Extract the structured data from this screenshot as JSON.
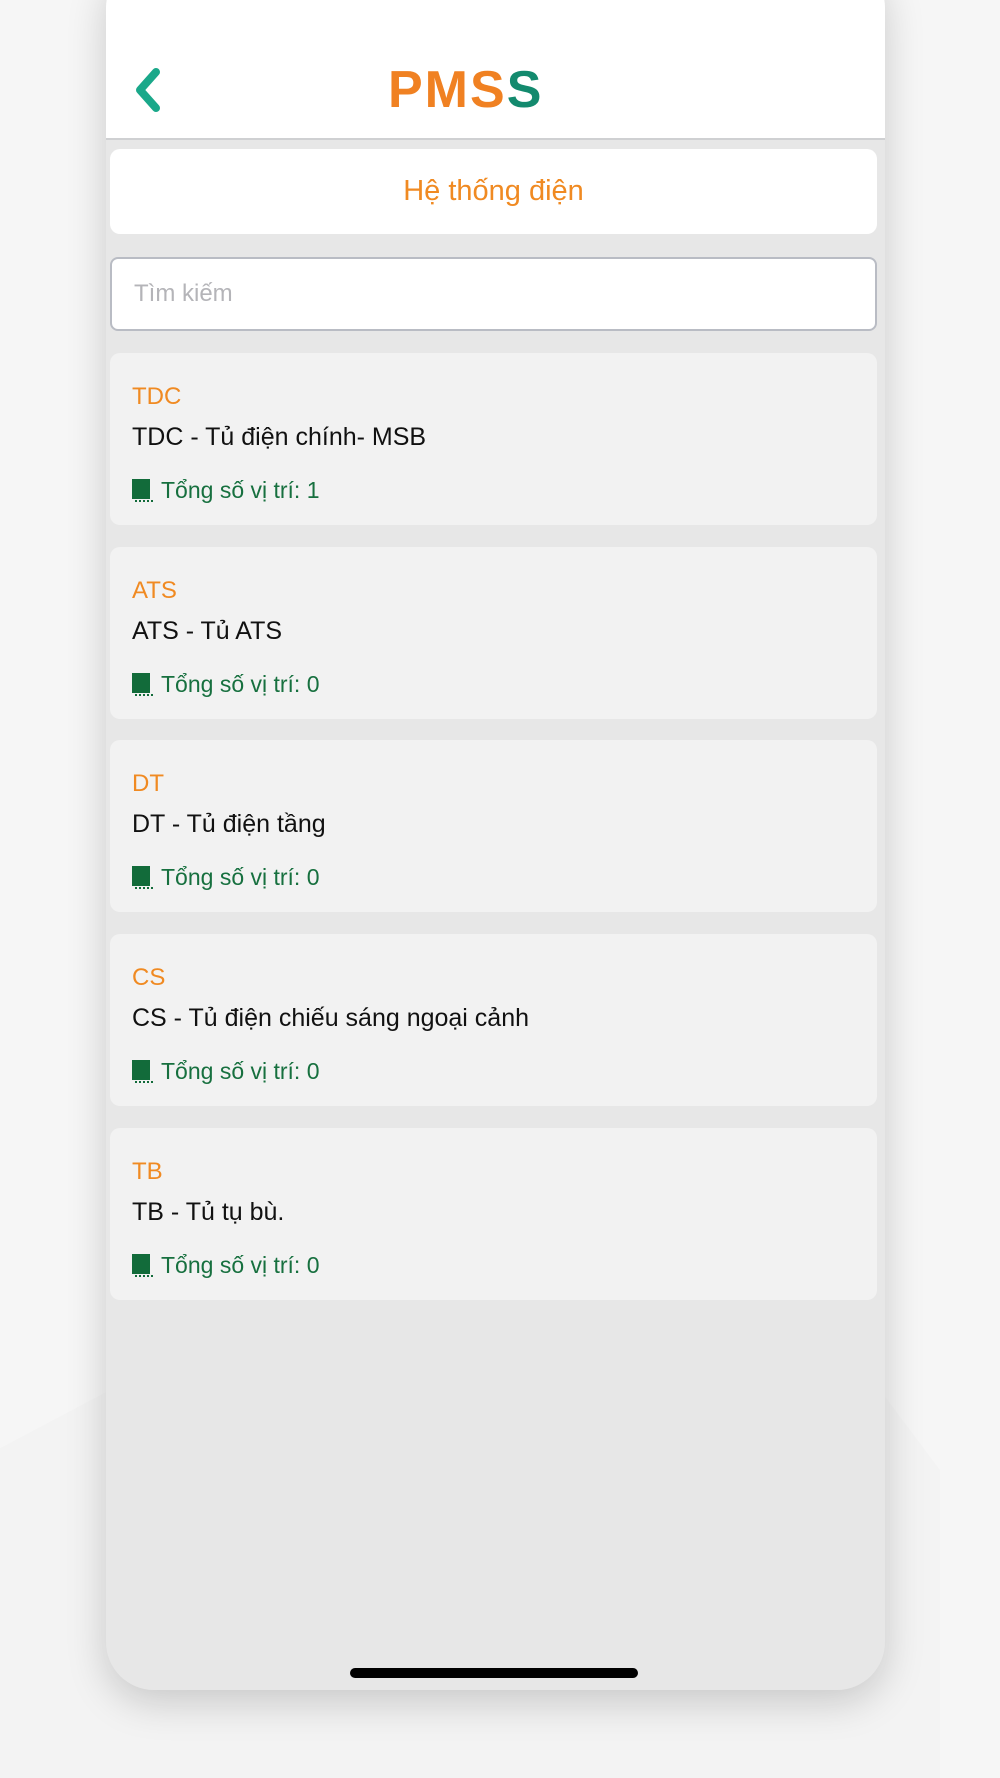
{
  "header": {
    "logo_left": "PMS",
    "logo_right": "S",
    "back_icon": "chevron-left-icon"
  },
  "title": "Hệ thống điện",
  "search": {
    "placeholder": "Tìm kiếm",
    "value": ""
  },
  "colors": {
    "accent": "#f08a22",
    "brand_green": "#138a6e",
    "count_green": "#17703f"
  },
  "items": [
    {
      "code": "TDC",
      "name": "TDC - Tủ điện chính- MSB",
      "count": "Tổng số vị trí: 1"
    },
    {
      "code": "ATS",
      "name": "ATS - Tủ ATS",
      "count": "Tổng số vị trí: 0"
    },
    {
      "code": "DT",
      "name": "DT - Tủ điện tầng",
      "count": "Tổng số vị trí: 0"
    },
    {
      "code": "CS",
      "name": "CS - Tủ điện chiếu sáng ngoại cảnh",
      "count": "Tổng số vị trí: 0"
    },
    {
      "code": "TB",
      "name": "TB - Tủ tụ bù.",
      "count": "Tổng số vị trí: 0"
    }
  ]
}
